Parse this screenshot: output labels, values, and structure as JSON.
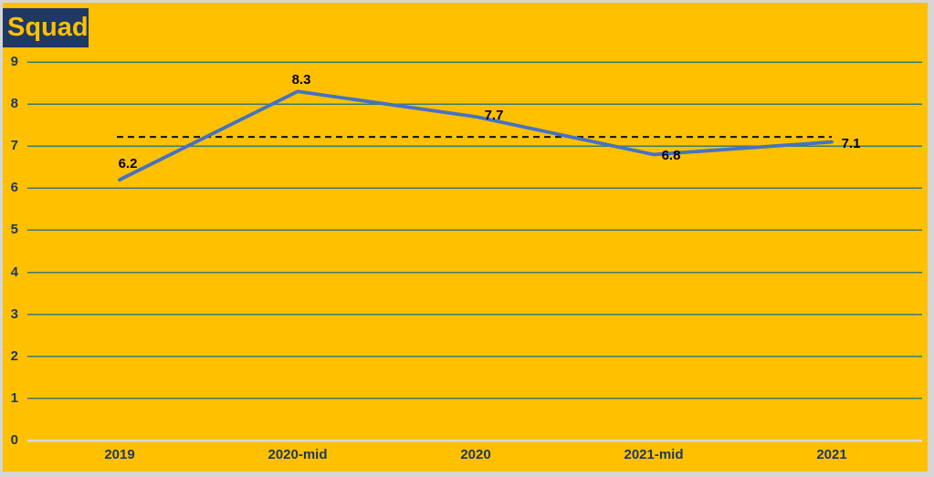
{
  "title": "Squad",
  "colors": {
    "background": "#FFC000",
    "frame_border": "#D5D5D5",
    "title_bg": "#1F3864",
    "title_text": "#FFC000",
    "axis_text": "#1F3864",
    "gridline": "#41796C",
    "zero_axis_line": "#D9D9D9",
    "series_line": "#4472C4",
    "average_line": "#111111",
    "data_label_text": "#000000"
  },
  "chart_data": {
    "type": "line",
    "title": "Squad",
    "categories": [
      "2019",
      "2020-mid",
      "2020",
      "2021-mid",
      "2021"
    ],
    "series": [
      {
        "name": "Squad",
        "values": [
          6.2,
          8.3,
          7.7,
          6.8,
          7.1
        ]
      }
    ],
    "data_labels": [
      "6.2",
      "8.3",
      "7.7",
      "6.8",
      "7.1"
    ],
    "average_line_value": 7.22,
    "average_line_style": "dashed",
    "y_ticks": [
      "0",
      "1",
      "2",
      "3",
      "4",
      "5",
      "6",
      "7",
      "8",
      "9"
    ],
    "ylim": [
      0,
      9
    ],
    "xlabel": "",
    "ylabel": "",
    "grid": true,
    "legend": "none"
  }
}
